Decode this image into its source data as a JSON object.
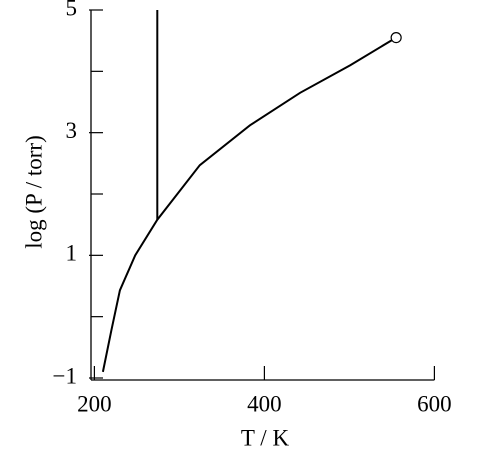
{
  "chart_data": {
    "type": "line",
    "xlabel": "T / K",
    "ylabel": "log (P / torr)",
    "xlim": [
      196,
      600
    ],
    "ylim": [
      -1,
      5
    ],
    "xticks": [
      200,
      400,
      600
    ],
    "yticks": [
      {
        "value": -1,
        "label": "−1"
      },
      1,
      3,
      5
    ],
    "minor_yticks": [
      0,
      2,
      4
    ],
    "series": [
      {
        "color": "#000000",
        "end_marker": "open-circle",
        "x": [
          210,
          220,
          230,
          248,
          274,
          324,
          383,
          442,
          501,
          555
        ],
        "values": [
          -0.9,
          -0.22,
          0.43,
          1.0,
          1.58,
          2.47,
          3.12,
          3.65,
          4.1,
          4.55
        ]
      },
      {
        "color": "#000000",
        "x": [
          274,
          274
        ],
        "values": [
          1.58,
          5
        ]
      }
    ]
  }
}
